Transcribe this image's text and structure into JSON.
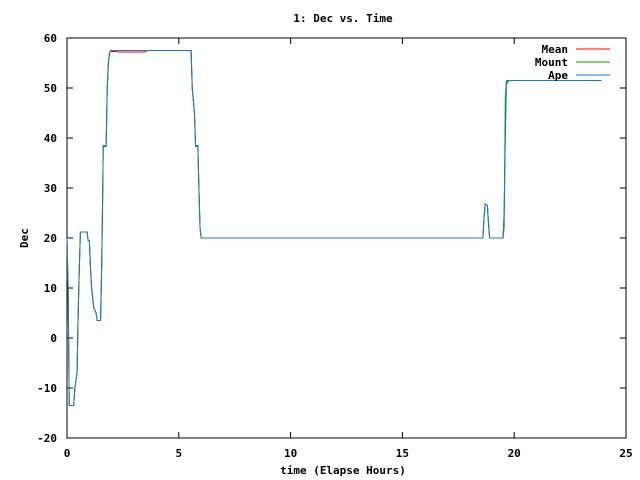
{
  "chart_data": {
    "type": "line",
    "title": "1: Dec vs. Time",
    "xlabel": "time (Elapse Hours)",
    "ylabel": "Dec",
    "xlim": [
      0,
      25
    ],
    "ylim": [
      -20,
      60
    ],
    "xticks": [
      0,
      5,
      10,
      15,
      20,
      25
    ],
    "yticks": [
      -20,
      -10,
      0,
      10,
      20,
      30,
      40,
      50,
      60
    ],
    "grid": false,
    "legend_position": "top-right",
    "series": [
      {
        "name": "Mean",
        "color": "#ff0000",
        "x": [
          0,
          0.05,
          0.1,
          0.12,
          0.2,
          0.3,
          0.35,
          0.45,
          0.5,
          0.55,
          0.6,
          0.65,
          0.9,
          0.93,
          0.95,
          1.0,
          1.05,
          1.1,
          1.2,
          1.3,
          1.35,
          1.45,
          1.5,
          1.55,
          1.6,
          1.62,
          1.65,
          1.75,
          1.8,
          1.85,
          1.9,
          1.95,
          2.0,
          2.2,
          2.25,
          2.3,
          3.5,
          3.6,
          3.8,
          4.0,
          5.55,
          5.6,
          5.7,
          5.75,
          5.85,
          5.9,
          5.95,
          6.0,
          18.6,
          18.65,
          18.7,
          18.8,
          18.85,
          18.9,
          19.5,
          19.55,
          19.6,
          19.65,
          19.7,
          19.75,
          19.85,
          23.9
        ],
        "y": [
          20,
          10,
          -13.5,
          -13.5,
          -13.5,
          -13.5,
          -10,
          -7,
          5,
          14,
          21.2,
          21.2,
          21.2,
          20,
          19.5,
          19.5,
          14,
          10,
          6,
          5,
          3.5,
          3.5,
          3.5,
          14,
          30,
          38.5,
          38.5,
          38.5,
          50,
          55,
          57,
          57.5,
          57.3,
          57.3,
          57.2,
          57.2,
          57.2,
          57.5,
          57.5,
          57.5,
          57.5,
          50,
          45,
          38.5,
          38.5,
          30,
          22,
          20,
          20,
          24,
          26.8,
          26.5,
          23,
          20,
          20,
          25,
          40,
          51,
          51.5,
          51.5,
          51.5,
          51.5
        ]
      },
      {
        "name": "Mount",
        "color": "#00aa00",
        "x": [
          0,
          0.05,
          0.1,
          0.12,
          0.2,
          0.3,
          0.35,
          0.45,
          0.5,
          0.55,
          0.6,
          0.65,
          0.9,
          0.93,
          0.95,
          1.0,
          1.05,
          1.1,
          1.2,
          1.3,
          1.35,
          1.45,
          1.5,
          1.55,
          1.6,
          1.62,
          1.65,
          1.75,
          1.8,
          1.85,
          1.9,
          1.95,
          2.0,
          2.2,
          2.25,
          2.3,
          3.5,
          3.6,
          3.8,
          4.0,
          5.55,
          5.6,
          5.7,
          5.75,
          5.85,
          5.9,
          5.95,
          6.0,
          18.6,
          18.65,
          18.7,
          18.8,
          18.85,
          18.9,
          19.5,
          19.55,
          19.6,
          19.65,
          19.7,
          19.75,
          19.85,
          23.9
        ],
        "y": [
          20,
          10,
          -13.5,
          -13.5,
          -13.5,
          -13.5,
          -10,
          -7,
          5,
          14,
          21.2,
          21.2,
          21.2,
          20,
          19.5,
          19.5,
          14,
          10,
          6,
          5,
          3.5,
          3.5,
          3.5,
          14,
          30,
          38.5,
          38.5,
          38.5,
          50,
          55,
          57,
          57.5,
          57.5,
          57.5,
          57.5,
          57.5,
          57.5,
          57.5,
          57.5,
          57.5,
          57.5,
          50,
          45,
          38.5,
          38.5,
          30,
          22,
          20,
          20,
          24,
          26.8,
          26.5,
          23,
          20,
          20,
          22,
          48,
          51.5,
          51,
          51.5,
          51.5,
          51.5
        ]
      },
      {
        "name": "Ape",
        "color": "#1f78c8",
        "x": [
          0,
          0.05,
          0.1,
          0.12,
          0.2,
          0.3,
          0.35,
          0.45,
          0.5,
          0.55,
          0.6,
          0.65,
          0.9,
          0.93,
          0.95,
          1.0,
          1.05,
          1.1,
          1.2,
          1.3,
          1.35,
          1.45,
          1.5,
          1.55,
          1.6,
          1.62,
          1.65,
          1.75,
          1.8,
          1.85,
          1.9,
          1.95,
          2.0,
          2.2,
          2.25,
          2.3,
          3.5,
          3.6,
          3.8,
          4.0,
          5.55,
          5.6,
          5.7,
          5.75,
          5.85,
          5.9,
          5.95,
          6.0,
          18.6,
          18.65,
          18.7,
          18.8,
          18.85,
          18.9,
          19.5,
          19.55,
          19.6,
          19.65,
          19.7,
          19.75,
          19.85,
          23.9
        ],
        "y": [
          20,
          10,
          -13.5,
          -13.5,
          -13.5,
          -13.5,
          -10,
          -7,
          5,
          14,
          21.2,
          21.2,
          21.2,
          20,
          19.5,
          19.5,
          14,
          10,
          6,
          5,
          3.5,
          3.5,
          3.5,
          14,
          30,
          38.3,
          38.3,
          38.3,
          50,
          55,
          57,
          57.5,
          57.5,
          57.5,
          57.5,
          57.5,
          57.5,
          57.5,
          57.5,
          57.5,
          57.5,
          50,
          45,
          38.3,
          38.3,
          30,
          22,
          20,
          20,
          24,
          26.8,
          26.5,
          23,
          20,
          20,
          25,
          40,
          51,
          51.5,
          51.5,
          51.5,
          51.5
        ]
      }
    ]
  }
}
